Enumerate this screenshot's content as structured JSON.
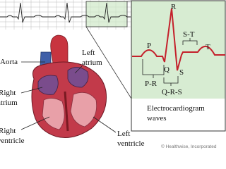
{
  "labels": {
    "aorta": "Aorta",
    "left_atrium": [
      "Left",
      "atrium"
    ],
    "right_atrium": [
      "Right",
      "atrium"
    ],
    "right_ventricle": [
      "Right",
      "ventricle"
    ],
    "left_ventricle": [
      "Left",
      "ventricle"
    ]
  },
  "ecg": {
    "waves": {
      "p": "P",
      "q": "Q",
      "r": "R",
      "s": "S",
      "t": "T"
    },
    "intervals": {
      "st": "S-T",
      "pr": "P-R",
      "qrs": "Q-R-S"
    },
    "caption": [
      "Electrocardiogram",
      "waves"
    ]
  },
  "credit": "© Healthwise, Incorporated"
}
